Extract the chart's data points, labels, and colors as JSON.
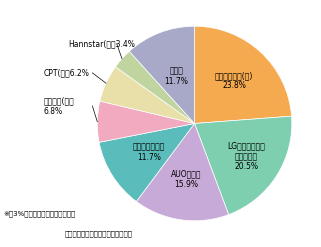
{
  "labels_inside": [
    "サムスン電子(韓)\n23.8%",
    "LGフィリップス\n（韓・蘭）\n20.5%",
    "AUO（台）\n15.9%",
    "奇美電子（台）\n11.7%",
    "その他\n11.7%"
  ],
  "labels_outside": [
    "シャープ(日）\n6.8%",
    "CPT(台）6.2%",
    "Hannstar(台）3.4%"
  ],
  "values": [
    23.8,
    20.5,
    15.9,
    11.7,
    6.8,
    6.2,
    3.4,
    11.7
  ],
  "colors": [
    "#f5aa50",
    "#7ecfb0",
    "#c8aad8",
    "#5bbcbc",
    "#f2aac0",
    "#e8e0a8",
    "#c0d4a0",
    "#a8a8c8"
  ],
  "note1": "※　3%以上のシェアを有する企業",
  "note2": "ディスプレイサーチ資料により作成"
}
